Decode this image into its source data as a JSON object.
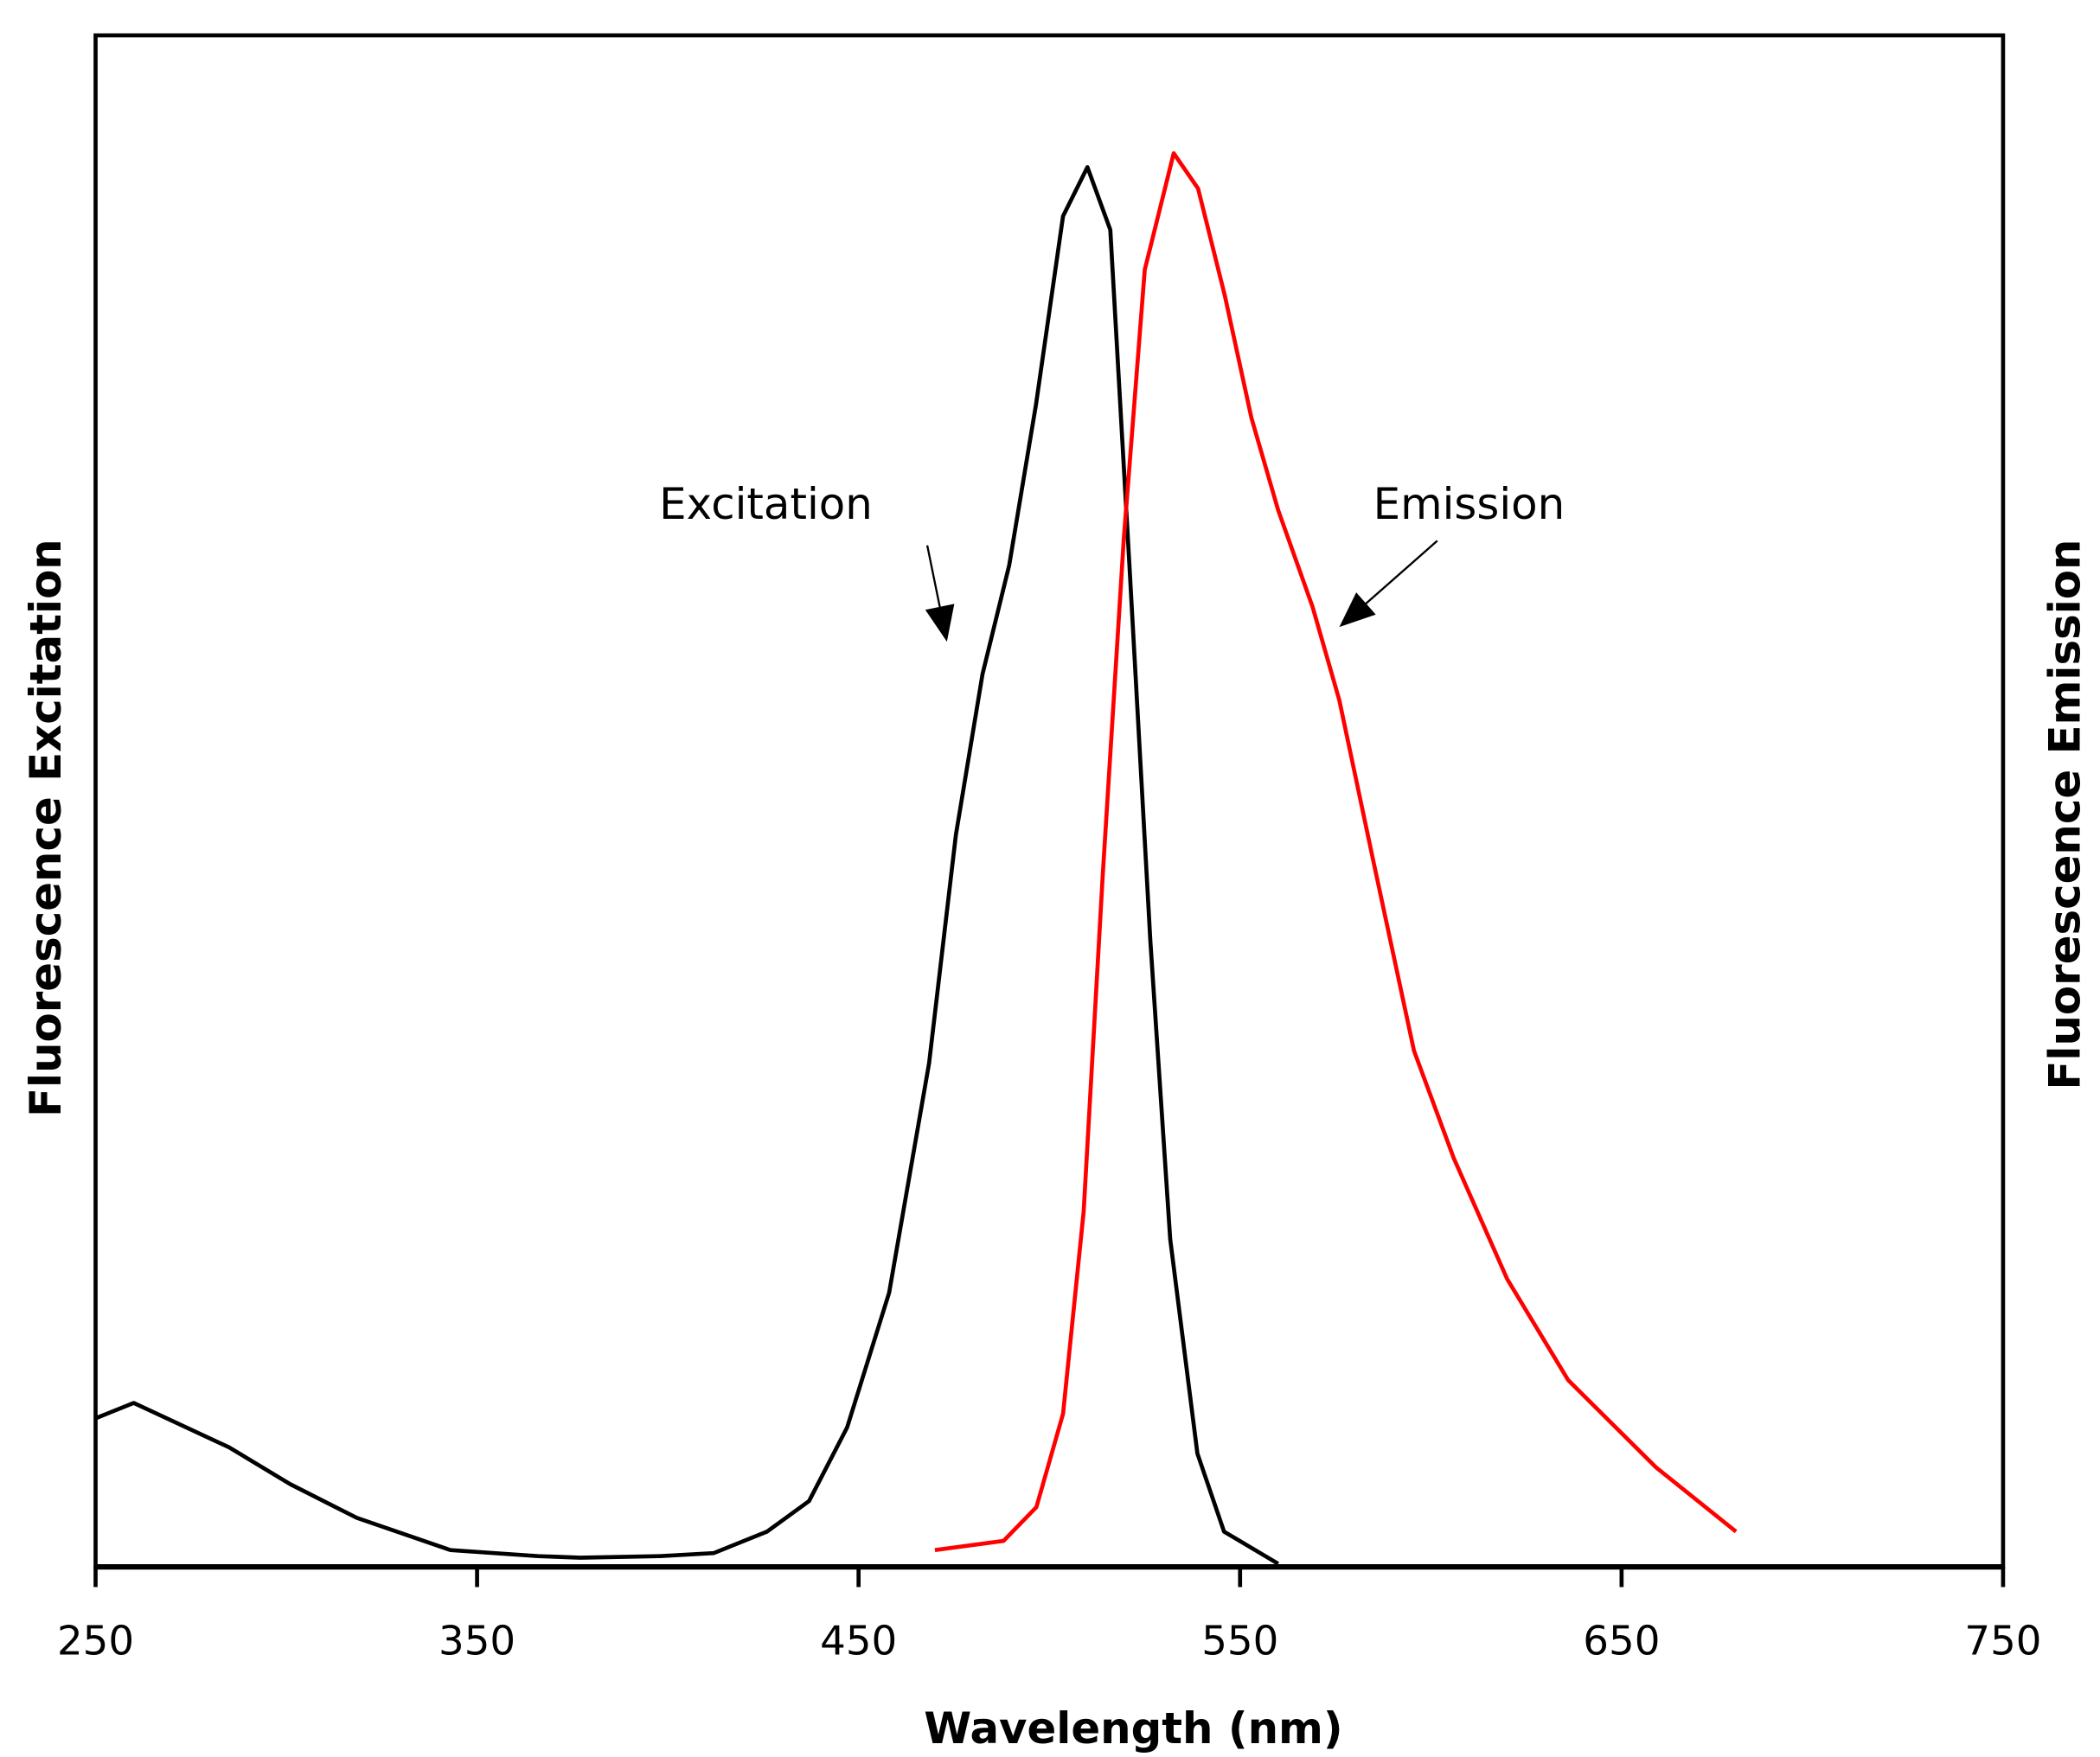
{
  "chart_data": {
    "type": "line",
    "title": "",
    "xlabel": "Wavelength (nm)",
    "ylabel_left": "Fluorescence Excitation",
    "ylabel_right": "Fluorescence Emission",
    "xlim": [
      250,
      750
    ],
    "ylim": [
      0,
      1
    ],
    "xticks": [
      250,
      350,
      450,
      550,
      650,
      750
    ],
    "grid": false,
    "legend": "none",
    "series": [
      {
        "name": "Excitation",
        "color": "#000000",
        "x": [
          250,
          260,
          285,
          301,
          318.5,
          343,
          366,
          377,
          398,
          412,
          426,
          437,
          447,
          458,
          468.5,
          475.5,
          482.5,
          489.5,
          496.5,
          503.6,
          510,
          516,
          521,
          526.5,
          531.7,
          538.8,
          545.8,
          560
        ],
        "y": [
          0.097,
          0.107,
          0.078,
          0.054,
          0.032,
          0.011,
          0.007,
          0.006,
          0.007,
          0.009,
          0.023,
          0.043,
          0.091,
          0.179,
          0.329,
          0.478,
          0.583,
          0.654,
          0.759,
          0.882,
          0.914,
          0.873,
          0.654,
          0.408,
          0.214,
          0.074,
          0.023,
          0.002
        ]
      },
      {
        "name": "Emission",
        "color": "#ff0000",
        "x": [
          470,
          488,
          496.6,
          503.6,
          509,
          514,
          519.5,
          525,
          532.6,
          539,
          546,
          553,
          560,
          569,
          576,
          585,
          595.6,
          606,
          620,
          636,
          659,
          680
        ],
        "y": [
          0.011,
          0.017,
          0.039,
          0.1,
          0.232,
          0.452,
          0.671,
          0.847,
          0.923,
          0.9,
          0.83,
          0.75,
          0.69,
          0.627,
          0.566,
          0.46,
          0.337,
          0.267,
          0.188,
          0.122,
          0.065,
          0.023
        ]
      }
    ],
    "annotations": [
      {
        "text": "Excitation",
        "text_x": 425.7,
        "text_y": 0.695,
        "arrow_from": [
          468,
          0.667
        ],
        "arrow_to": [
          473,
          0.606
        ]
      },
      {
        "text": "Emission",
        "text_x": 610,
        "text_y": 0.695,
        "arrow_from": [
          601.7,
          0.67
        ],
        "arrow_to": [
          576.6,
          0.615
        ]
      }
    ]
  }
}
